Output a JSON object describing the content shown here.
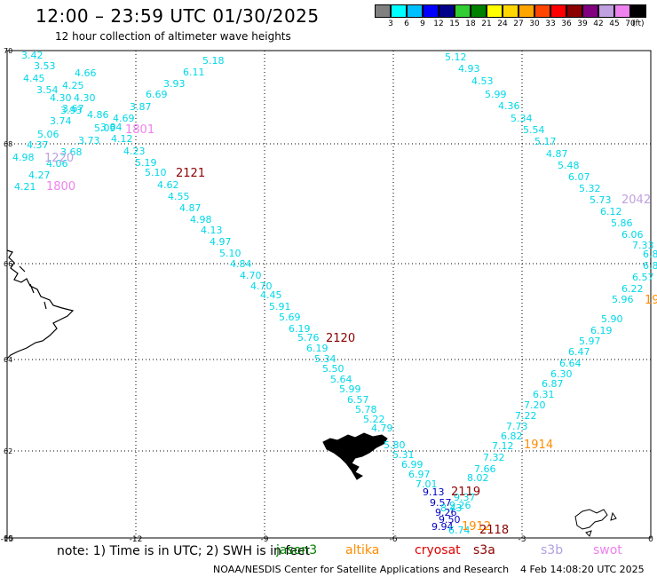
{
  "title": "12:00 – 23:59 UTC 01/30/2025",
  "subtitle": "12 hour collection of altimeter wave heights",
  "note": "note: 1) Time is in UTC; 2) SWH is in feet",
  "footer": "NOAA/NESDIS Center for Satellite Applications and Research",
  "footer_date": "4 Feb 14:08:20 UTC 2025",
  "satellites": [
    {
      "name": "jason3",
      "color": "#008000"
    },
    {
      "name": "altika",
      "color": "#ff8c00"
    },
    {
      "name": "cryosat",
      "color": "#e00000"
    },
    {
      "name": "s3a",
      "color": "#8b0000"
    },
    {
      "name": "s3b",
      "color": "#b0a0e0"
    },
    {
      "name": "swot",
      "color": "#ee82ee"
    }
  ],
  "colorbar": {
    "unit": "(ft)",
    "ticks": [
      "3",
      "6",
      "9",
      "12",
      "15",
      "18",
      "21",
      "24",
      "27",
      "30",
      "33",
      "36",
      "39",
      "42",
      "45",
      "70"
    ],
    "colors": [
      "#808080",
      "#00ffff",
      "#00bfff",
      "#0000ff",
      "#00008b",
      "#32cd32",
      "#008000",
      "#ffff00",
      "#ffd700",
      "#ffa500",
      "#ff4500",
      "#ff0000",
      "#8b0000",
      "#800080",
      "#c0a0e0",
      "#ee82ee",
      "#000000"
    ]
  },
  "axes": {
    "lon_ticks": [
      "-15",
      "-12",
      "-9",
      "-6",
      "-3",
      "0"
    ],
    "lat_ticks": [
      "70",
      "68",
      "66",
      "64",
      "62",
      "60"
    ]
  },
  "pass_labels": [
    {
      "text": "1801",
      "color": "#ee82ee"
    },
    {
      "text": "1220",
      "color": "#c0a0e0"
    },
    {
      "text": "1800",
      "color": "#ee82ee"
    },
    {
      "text": "2121",
      "color": "#8b0000"
    },
    {
      "text": "2120",
      "color": "#8b0000"
    },
    {
      "text": "2042",
      "color": "#c0a0e0"
    },
    {
      "text": "19",
      "color": "#ff8c00"
    },
    {
      "text": "1914",
      "color": "#ff8c00"
    },
    {
      "text": "2119",
      "color": "#8b0000"
    },
    {
      "text": "1912",
      "color": "#ff8c00"
    },
    {
      "text": "2118",
      "color": "#8b0000"
    }
  ],
  "track_values": {
    "track_a": [
      "5.18",
      "6.11",
      "3.93",
      "6.69",
      "3.87",
      "4.69",
      "4.12",
      "4.23",
      "5.19",
      "5.10",
      "4.62",
      "4.55",
      "4.87",
      "4.98",
      "4.13",
      "4.97",
      "5.10",
      "4.84",
      "4.70",
      "4.70",
      "4.45",
      "5.91",
      "5.69",
      "6.19",
      "5.76",
      "6.19",
      "5.34",
      "5.50",
      "5.64",
      "5.99",
      "6.57",
      "5.78",
      "5.22",
      "4.79",
      "5.80",
      "5.31",
      "6.99",
      "6.97",
      "7.01",
      "9.13",
      "9.57",
      "9.26",
      "9.50",
      "9.94",
      "6.74"
    ],
    "track_b": [
      "5.12",
      "4.93",
      "4.53",
      "5.99",
      "4.36",
      "5.34",
      "5.54",
      "5.17",
      "4.87",
      "5.48",
      "6.07",
      "5.32",
      "5.73",
      "6.12",
      "5.86",
      "6.06",
      "7.33",
      "6.8",
      "6.8",
      "6.57",
      "6.22",
      "5.96",
      "5.90",
      "6.19",
      "5.97",
      "6.47",
      "6.64",
      "6.30",
      "6.87",
      "6.31",
      "7.20",
      "7.22",
      "7.73",
      "6.82",
      "7.12",
      "7.32",
      "7.66",
      "8.02",
      "9.37",
      "8.43",
      "9.26"
    ],
    "cluster": [
      "3.42",
      "3.53",
      "4.45",
      "3.54",
      "4.30",
      "4.25",
      "4.66",
      "4.30",
      "3.67",
      "3.93",
      "4.86",
      "3.74",
      "5.06",
      "3.73",
      "4.37",
      "3.68",
      "4.98",
      "4.06",
      "4.27",
      "4.21",
      "5.09",
      "3.84"
    ]
  }
}
